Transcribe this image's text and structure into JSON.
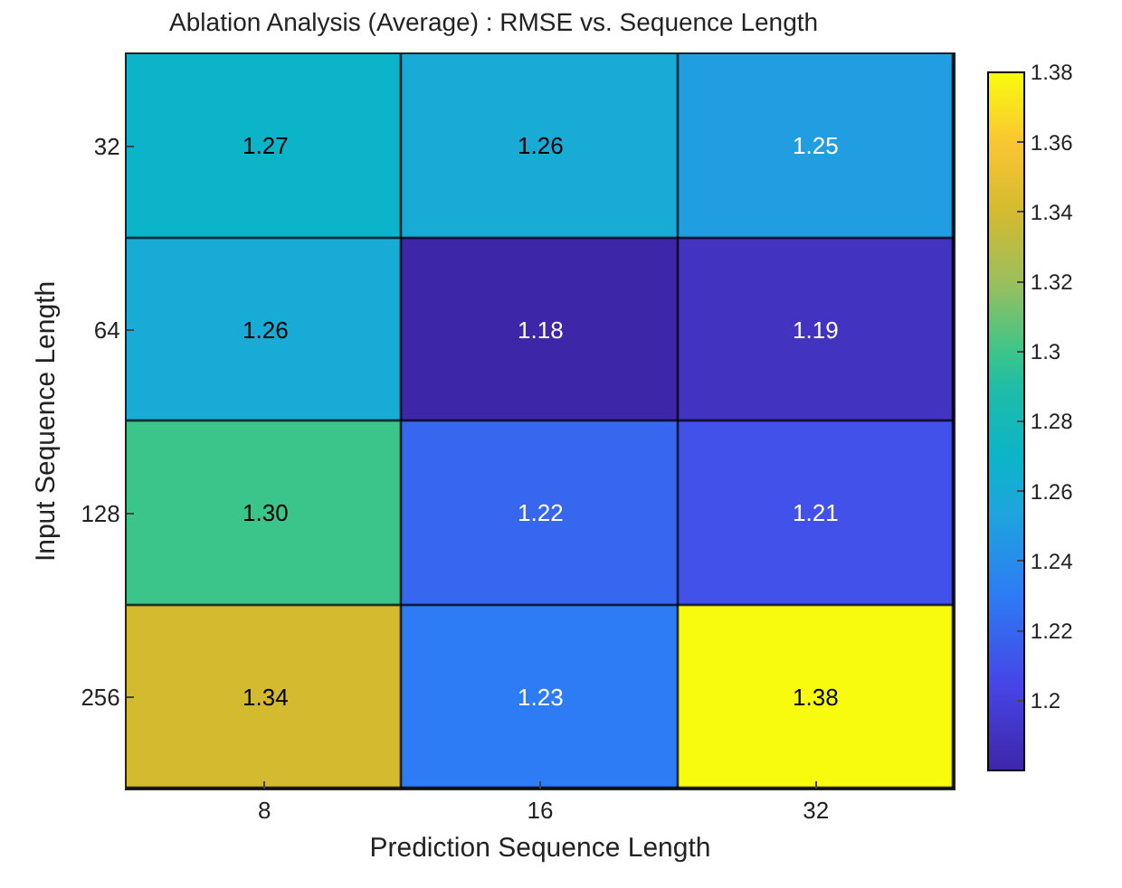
{
  "chart_data": {
    "type": "heatmap",
    "title": "Ablation Analysis (Average) : RMSE vs. Sequence Length",
    "xlabel": "Prediction Sequence Length",
    "ylabel": "Input Sequence Length",
    "categories": [
      "8",
      "16",
      "32"
    ],
    "y_categories": [
      "32",
      "64",
      "128",
      "256"
    ],
    "cells": [
      [
        1.27,
        1.26,
        1.25
      ],
      [
        1.26,
        1.18,
        1.19
      ],
      [
        1.3,
        1.22,
        1.21
      ],
      [
        1.34,
        1.23,
        1.38
      ]
    ],
    "cell_labels": [
      [
        "1.27",
        "1.26",
        "1.25"
      ],
      [
        "1.26",
        "1.18",
        "1.19"
      ],
      [
        "1.30",
        "1.22",
        "1.21"
      ],
      [
        "1.34",
        "1.23",
        "1.38"
      ]
    ],
    "clim": [
      1.18,
      1.38
    ],
    "cticks": [
      1.2,
      1.22,
      1.24,
      1.26,
      1.28,
      1.3,
      1.32,
      1.34,
      1.36,
      1.38
    ],
    "data_labels": true
  }
}
